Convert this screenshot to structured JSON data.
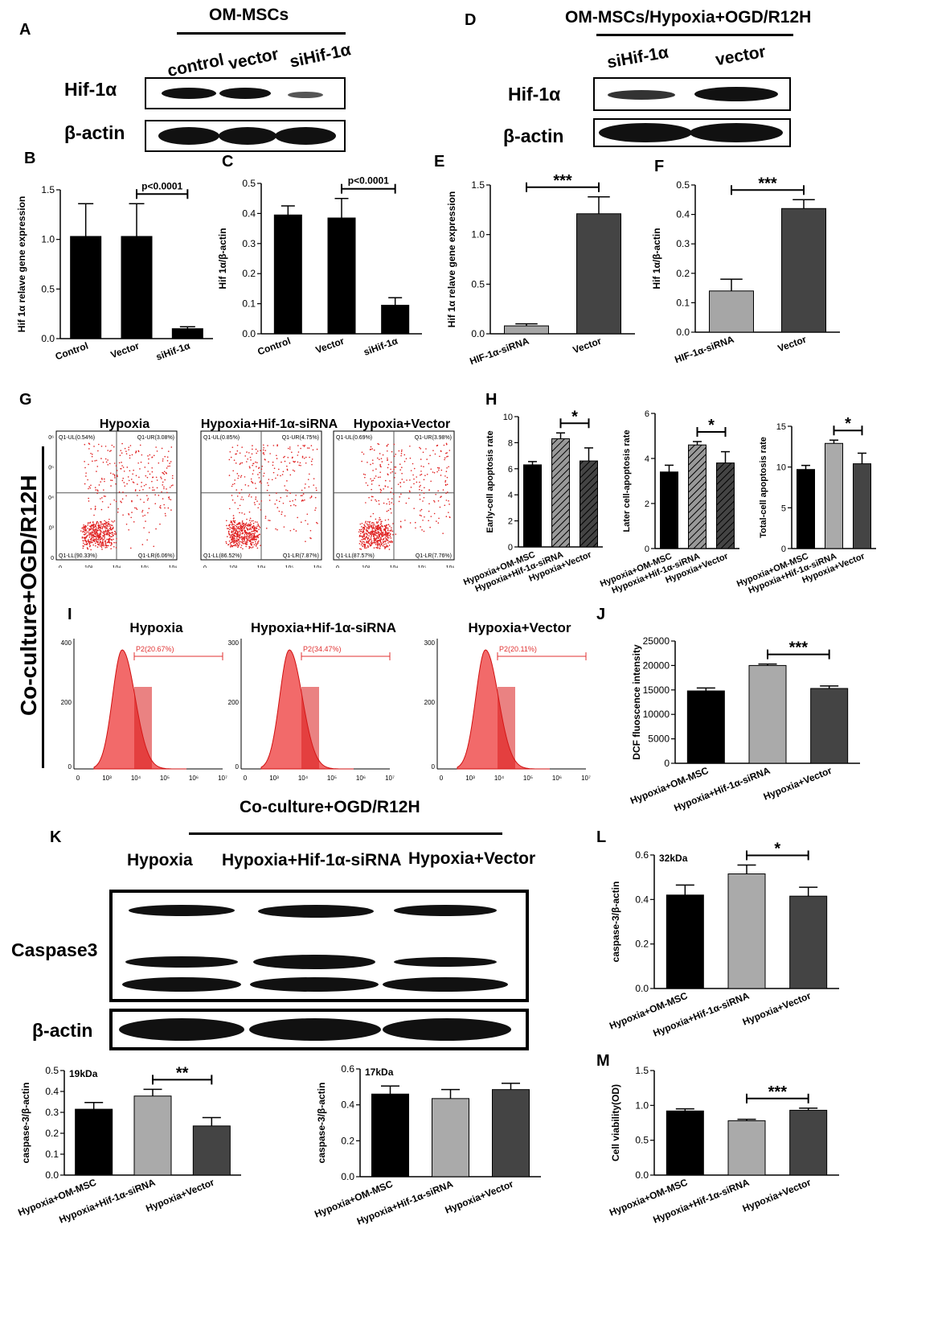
{
  "panels": {
    "A": {
      "letter": "A",
      "header": "OM-MSCs",
      "lanes": [
        "control",
        "vector",
        "siHif-1α"
      ],
      "rows": [
        "Hif-1α",
        "β-actin"
      ]
    },
    "D": {
      "letter": "D",
      "header": "OM-MSCs/Hypoxia+OGD/R12H",
      "lanes": [
        "siHif-1α",
        "vector"
      ],
      "rows": [
        "Hif-1α",
        "β-actin"
      ]
    },
    "G": {
      "letter": "G",
      "titles": [
        "Hypoxia",
        "Hypoxia+Hif-1α-siRNA",
        "Hypoxia+Vector"
      ],
      "quadrants": [
        {
          "UL": "Q1-UL(0.54%)",
          "UR": "Q1-UR(3.08%)",
          "LL": "Q1-LL(90.33%)",
          "LR": "Q1-LR(6.06%)"
        },
        {
          "UL": "Q1-UL(0.85%)",
          "UR": "Q1-UR(4.75%)",
          "LL": "Q1-LL(86.52%)",
          "LR": "Q1-LR(7.87%)"
        },
        {
          "UL": "Q1-UL(0.69%)",
          "UR": "Q1-UR(3.98%)",
          "LL": "Q1-LL(87.57%)",
          "LR": "Q1-LR(7.76%)"
        }
      ],
      "xticks": [
        "0",
        "10³",
        "10⁴",
        "10⁵",
        "10⁶"
      ],
      "yticks": [
        "0",
        "10³",
        "10⁴",
        "10⁵",
        "10⁶"
      ]
    },
    "H": {
      "letter": "H"
    },
    "I": {
      "letter": "I",
      "titles": [
        "Hypoxia",
        "Hypoxia+Hif-1α-siRNA",
        "Hypoxia+Vector"
      ],
      "gates": [
        "P2(20.67%)",
        "P2(34.47%)",
        "P2(20.11%)"
      ],
      "xticks": [
        "0",
        "10³",
        "10⁴",
        "10⁵",
        "10⁶",
        "10⁷"
      ],
      "yticks": [
        "0",
        "200",
        "300",
        "400"
      ]
    },
    "K": {
      "letter": "K",
      "header": "Co-culture+OGD/R12H",
      "lanes": [
        "Hypoxia",
        "Hypoxia+Hif-1α-siRNA",
        "Hypoxia+Vector"
      ],
      "rows": [
        "Caspase3",
        "β-actin"
      ]
    },
    "vertical_label": "Co-culture+OGD/R12H"
  },
  "chart_data": [
    {
      "id": "B",
      "type": "bar",
      "categories": [
        "Control",
        "Vector",
        "siHif-1α"
      ],
      "values": [
        1.03,
        1.03,
        0.1
      ],
      "errors": [
        0.33,
        0.33,
        0.02
      ],
      "ylabel": "Hif 1α relave gene expression",
      "ylim": [
        0,
        1.5
      ],
      "yticks": [
        "0.0",
        "0.5",
        "1.0",
        "1.5"
      ],
      "annotation": "p<0.0001",
      "bracket": [
        1,
        2
      ]
    },
    {
      "id": "C",
      "type": "bar",
      "categories": [
        "Control",
        "Vector",
        "siHif-1α"
      ],
      "values": [
        0.395,
        0.385,
        0.095
      ],
      "errors": [
        0.03,
        0.065,
        0.025
      ],
      "ylabel": "Hif 1α/β-actin",
      "ylim": [
        0,
        0.5
      ],
      "yticks": [
        "0.0",
        "0.1",
        "0.2",
        "0.3",
        "0.4",
        "0.5"
      ],
      "annotation": "p<0.0001",
      "bracket": [
        1,
        2
      ]
    },
    {
      "id": "E",
      "type": "bar",
      "categories": [
        "HIF-1α-siRNA",
        "Vector"
      ],
      "values": [
        0.08,
        1.21
      ],
      "errors": [
        0.02,
        0.17
      ],
      "ylabel": "Hif 1α relave gene expression",
      "ylim": [
        0,
        1.5
      ],
      "yticks": [
        "0.0",
        "0.5",
        "1.0",
        "1.5"
      ],
      "annotation": "***",
      "bracket": [
        0,
        1
      ]
    },
    {
      "id": "F",
      "type": "bar",
      "categories": [
        "HIF-1α-siRNA",
        "Vector"
      ],
      "values": [
        0.14,
        0.42
      ],
      "errors": [
        0.04,
        0.03
      ],
      "ylabel": "Hif 1α/β-actin",
      "ylim": [
        0,
        0.5
      ],
      "yticks": [
        "0.0",
        "0.1",
        "0.2",
        "0.3",
        "0.4",
        "0.5"
      ],
      "annotation": "***",
      "bracket": [
        0,
        1
      ]
    },
    {
      "id": "H1",
      "type": "bar",
      "categories": [
        "Hypoxia+OM-MSC",
        "Hypoxia+Hif-1α-siRNA",
        "Hypoxia+Vector"
      ],
      "values": [
        6.3,
        8.3,
        6.6
      ],
      "errors": [
        0.25,
        0.45,
        1.0
      ],
      "ylabel": "Early-cell apoptosis rate",
      "ylim": [
        0,
        10
      ],
      "yticks": [
        "0",
        "2",
        "4",
        "6",
        "8",
        "10"
      ],
      "annotation": "*",
      "bracket": [
        1,
        2
      ]
    },
    {
      "id": "H2",
      "type": "bar",
      "categories": [
        "Hypoxia+OM-MSC",
        "Hypoxia+Hif-1α-siRNA",
        "Hypoxia+Vector"
      ],
      "values": [
        3.4,
        4.6,
        3.8
      ],
      "errors": [
        0.3,
        0.15,
        0.5
      ],
      "ylabel": "Later cell-apoptosis rate",
      "ylim": [
        0,
        6
      ],
      "yticks": [
        "0",
        "2",
        "4",
        "6"
      ],
      "annotation": "*",
      "bracket": [
        1,
        2
      ]
    },
    {
      "id": "H3",
      "type": "bar",
      "categories": [
        "Hypoxia+OM-MSC",
        "Hypoxia+Hif-1α-siRNA",
        "Hypoxia+Vector"
      ],
      "values": [
        9.7,
        12.9,
        10.4
      ],
      "errors": [
        0.5,
        0.4,
        1.3
      ],
      "ylabel": "Total-cell apoptosis rate",
      "ylim": [
        0,
        15
      ],
      "yticks": [
        "0",
        "5",
        "10",
        "15"
      ],
      "annotation": "*",
      "bracket": [
        1,
        2
      ]
    },
    {
      "id": "J",
      "type": "bar",
      "categories": [
        "Hypoxia+OM-MSC",
        "Hypoxia+Hif-1α-siRNA",
        "Hypoxia+Vector"
      ],
      "values": [
        14800,
        20000,
        15300
      ],
      "errors": [
        600,
        300,
        500
      ],
      "ylabel": "DCF fluoscence intensity",
      "ylim": [
        0,
        25000
      ],
      "yticks": [
        "0",
        "5000",
        "10000",
        "15000",
        "20000",
        "25000"
      ],
      "annotation": "***",
      "bracket": [
        1,
        2
      ]
    },
    {
      "id": "L",
      "type": "bar",
      "categories": [
        "Hypoxia+OM-MSC",
        "Hypoxia+Hif-1α-siRNA",
        "Hypoxia+Vector"
      ],
      "values": [
        0.42,
        0.515,
        0.415
      ],
      "errors": [
        0.045,
        0.04,
        0.04
      ],
      "ylabel": "caspase-3/β-actin",
      "ylim": [
        0,
        0.6
      ],
      "yticks": [
        "0.0",
        "0.2",
        "0.4",
        "0.6"
      ],
      "annotation": "*",
      "bracket": [
        1,
        2
      ],
      "tag": "32kDa"
    },
    {
      "id": "K1",
      "type": "bar",
      "categories": [
        "Hypoxia+OM-MSC",
        "Hypoxia+Hif-1α-siRNA",
        "Hypoxia+Vector"
      ],
      "values": [
        0.315,
        0.378,
        0.235
      ],
      "errors": [
        0.032,
        0.032,
        0.04
      ],
      "ylabel": "caspase-3/β-actin",
      "ylim": [
        0,
        0.5
      ],
      "yticks": [
        "0.0",
        "0.1",
        "0.2",
        "0.3",
        "0.4",
        "0.5"
      ],
      "annotation": "**",
      "bracket": [
        1,
        2
      ],
      "tag": "19kDa"
    },
    {
      "id": "K2",
      "type": "bar",
      "categories": [
        "Hypoxia+OM-MSC",
        "Hypoxia+Hif-1α-siRNA",
        "Hypoxia+Vector"
      ],
      "values": [
        0.46,
        0.435,
        0.485
      ],
      "errors": [
        0.045,
        0.05,
        0.035
      ],
      "ylabel": "caspase-3/β-actin",
      "ylim": [
        0,
        0.6
      ],
      "yticks": [
        "0.0",
        "0.2",
        "0.4",
        "0.6"
      ],
      "annotation": "",
      "bracket": null,
      "tag": "17kDa"
    },
    {
      "id": "M",
      "type": "bar",
      "categories": [
        "Hypoxia+OM-MSC",
        "Hypoxia+Hif-1α-siRNA",
        "Hypoxia+Vector"
      ],
      "values": [
        0.92,
        0.78,
        0.93
      ],
      "errors": [
        0.03,
        0.02,
        0.03
      ],
      "ylabel": "Cell viability(OD)",
      "ylim": [
        0,
        1.5
      ],
      "yticks": [
        "0.0",
        "0.5",
        "1.0",
        "1.5"
      ],
      "annotation": "***",
      "bracket": [
        1,
        2
      ]
    }
  ]
}
